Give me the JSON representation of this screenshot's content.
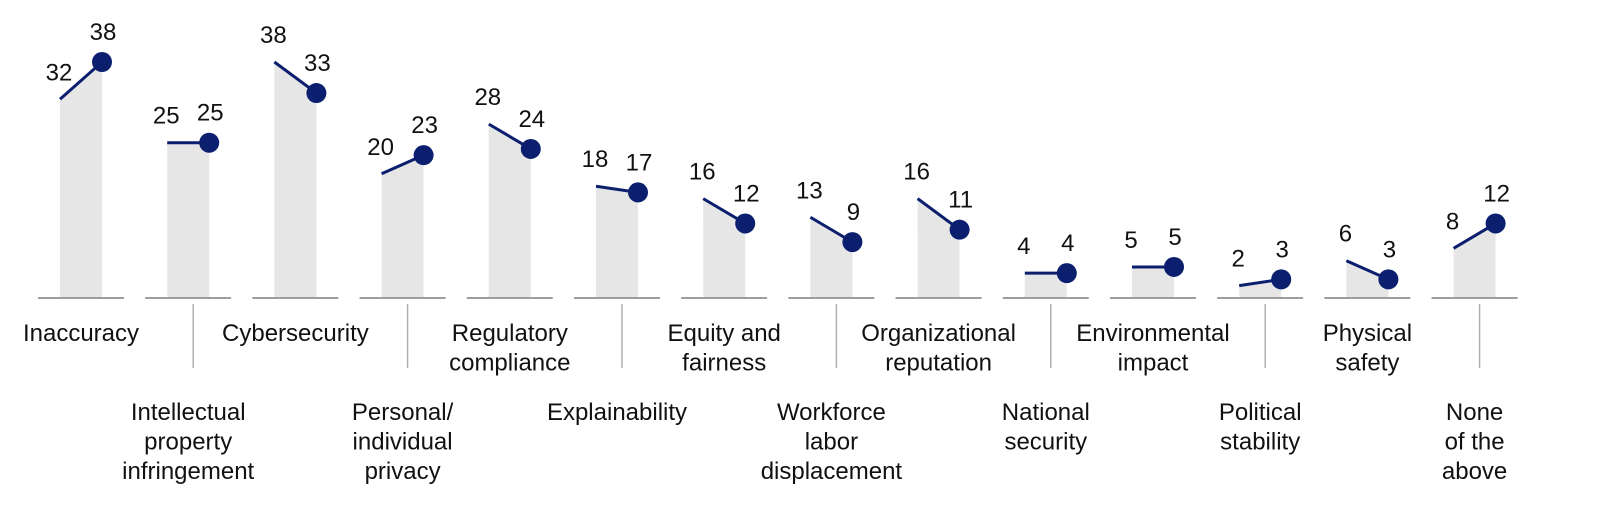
{
  "chart_data": {
    "type": "bar",
    "ylim": [
      0,
      40
    ],
    "colors": {
      "bar": "#e6e6e6",
      "series_line": "#0b1f6e",
      "marker": "#0b1f6e",
      "baseline": "#9e9e9e",
      "connector": "#b0b0b0",
      "text": "#111111"
    },
    "categories": [
      {
        "lines": [
          "Inaccuracy"
        ],
        "start": 32,
        "end": 38
      },
      {
        "lines": [
          "Intellectual",
          "property",
          "infringement"
        ],
        "start": 25,
        "end": 25
      },
      {
        "lines": [
          "Cybersecurity"
        ],
        "start": 38,
        "end": 33
      },
      {
        "lines": [
          "Personal/",
          "individual",
          "privacy"
        ],
        "start": 20,
        "end": 23
      },
      {
        "lines": [
          "Regulatory",
          "compliance"
        ],
        "start": 28,
        "end": 24
      },
      {
        "lines": [
          "Explainability"
        ],
        "start": 18,
        "end": 17
      },
      {
        "lines": [
          "Equity and",
          "fairness"
        ],
        "start": 16,
        "end": 12
      },
      {
        "lines": [
          "Workforce",
          "labor",
          "displacement"
        ],
        "start": 13,
        "end": 9
      },
      {
        "lines": [
          "Organizational",
          "reputation"
        ],
        "start": 16,
        "end": 11
      },
      {
        "lines": [
          "National",
          "security"
        ],
        "start": 4,
        "end": 4
      },
      {
        "lines": [
          "Environmental",
          "impact"
        ],
        "start": 5,
        "end": 5
      },
      {
        "lines": [
          "Political",
          "stability"
        ],
        "start": 2,
        "end": 3
      },
      {
        "lines": [
          "Physical",
          "safety"
        ],
        "start": 6,
        "end": 3
      },
      {
        "lines": [
          "None",
          "of the",
          "above"
        ],
        "start": 8,
        "end": 12
      }
    ]
  }
}
